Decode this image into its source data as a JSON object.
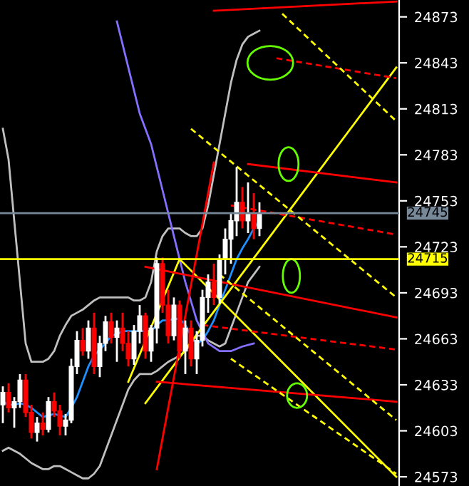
{
  "chart_data": {
    "type": "candlestick",
    "categories": [
      null,
      null,
      null,
      null,
      null,
      null,
      null,
      null,
      null,
      null,
      null,
      null,
      null,
      null,
      null,
      null,
      null,
      null,
      null,
      null,
      null,
      null,
      null,
      null,
      null,
      null,
      null,
      null,
      null,
      null,
      null,
      null,
      null,
      null,
      null,
      null,
      null,
      null,
      null,
      null,
      null,
      null,
      null,
      null,
      null,
      null,
      null,
      null,
      null,
      null,
      null,
      null,
      null,
      null,
      null,
      null,
      null,
      null,
      null,
      null,
      null,
      null,
      null,
      null,
      null,
      null,
      null,
      null,
      null,
      null
    ],
    "ohlc": [
      [
        24620,
        24632,
        24608,
        24628
      ],
      [
        24628,
        24634,
        24615,
        24618
      ],
      [
        24618,
        24625,
        24605,
        24622
      ],
      [
        24622,
        24640,
        24618,
        24636
      ],
      [
        24636,
        24640,
        24612,
        24615
      ],
      [
        24615,
        24620,
        24598,
        24602
      ],
      [
        24602,
        24612,
        24596,
        24608
      ],
      [
        24608,
        24615,
        24600,
        24604
      ],
      [
        24604,
        24625,
        24602,
        24622
      ],
      [
        24622,
        24628,
        24612,
        24616
      ],
      [
        24616,
        24620,
        24600,
        24606
      ],
      [
        24606,
        24614,
        24600,
        24610
      ],
      [
        24610,
        24650,
        24608,
        24645
      ],
      [
        24645,
        24668,
        24640,
        24662
      ],
      [
        24662,
        24670,
        24652,
        24655
      ],
      [
        24655,
        24675,
        24650,
        24670
      ],
      [
        24670,
        24680,
        24640,
        24645
      ],
      [
        24645,
        24665,
        24638,
        24660
      ],
      [
        24660,
        24678,
        24655,
        24674
      ],
      [
        24674,
        24680,
        24660,
        24664
      ],
      [
        24664,
        24675,
        24648,
        24670
      ],
      [
        24670,
        24680,
        24655,
        24660
      ],
      [
        24660,
        24668,
        24645,
        24650
      ],
      [
        24650,
        24672,
        24646,
        24668
      ],
      [
        24668,
        24685,
        24660,
        24678
      ],
      [
        24678,
        24680,
        24650,
        24655
      ],
      [
        24655,
        24672,
        24648,
        24670
      ],
      [
        24670,
        24716,
        24660,
        24712
      ],
      [
        24712,
        24716,
        24680,
        24685
      ],
      [
        24685,
        24695,
        24660,
        24665
      ],
      [
        24665,
        24690,
        24662,
        24685
      ],
      [
        24685,
        24688,
        24650,
        24655
      ],
      [
        24655,
        24675,
        24640,
        24670
      ],
      [
        24670,
        24675,
        24645,
        24650
      ],
      [
        24650,
        24668,
        24640,
        24662
      ],
      [
        24662,
        24695,
        24658,
        24690
      ],
      [
        24690,
        24705,
        24680,
        24700
      ],
      [
        24700,
        24712,
        24685,
        24690
      ],
      [
        24690,
        24718,
        24686,
        24715
      ],
      [
        24715,
        24735,
        24705,
        24728
      ],
      [
        24728,
        24745,
        24712,
        24740
      ],
      [
        24740,
        24775,
        24730,
        24752
      ],
      [
        24752,
        24762,
        24735,
        24740
      ],
      [
        24740,
        24765,
        24732,
        24745
      ],
      [
        24745,
        24758,
        24728,
        24735
      ],
      [
        24735,
        24752,
        24730,
        24745
      ],
      null,
      null,
      null,
      null,
      null,
      null,
      null,
      null,
      null,
      null,
      null,
      null,
      null,
      null,
      null,
      null,
      null,
      null,
      null,
      null,
      null,
      null,
      null,
      null
    ],
    "colors": [
      "#ffffff",
      "#ff0000",
      "#ffffff",
      "#ffffff",
      "#ff0000",
      "#ff0000",
      "#ffffff",
      "#ff0000",
      "#ffffff",
      "#ff0000",
      "#ff0000",
      "#ffffff",
      "#ffffff",
      "#ffffff",
      "#ff0000",
      "#ffffff",
      "#ff0000",
      "#ffffff",
      "#ffffff",
      "#ff0000",
      "#ffffff",
      "#ff0000",
      "#ff0000",
      "#ffffff",
      "#ffffff",
      "#ff0000",
      "#ffffff",
      "#ffffff",
      "#ff0000",
      "#ff0000",
      "#ffffff",
      "#ff0000",
      "#ffffff",
      "#ff0000",
      "#ffffff",
      "#ffffff",
      "#ffffff",
      "#ff0000",
      "#ffffff",
      "#ffffff",
      "#ffffff",
      "#ffffff",
      "#ff0000",
      "#ffffff",
      "#ff0000",
      "#ffffff",
      null,
      null,
      null,
      null,
      null,
      null,
      null,
      null,
      null,
      null,
      null,
      null,
      null,
      null,
      null,
      null,
      null,
      null,
      null,
      null,
      null,
      null,
      null,
      null
    ],
    "series": [
      {
        "type": "line",
        "color": "#c0c0c0",
        "values": [
          24800,
          24780,
          24740,
          24700,
          24660,
          24648,
          24648,
          24648,
          24650,
          24655,
          24665,
          24672,
          24678,
          24680,
          24682,
          24685,
          24688,
          24690,
          24690,
          24690,
          24690,
          24690,
          24690,
          24688,
          24688,
          24690,
          24700,
          24720,
          24730,
          24735,
          24735,
          24735,
          24732,
          24730,
          24730,
          24735,
          24750,
          24770,
          24790,
          24810,
          24830,
          24845,
          24855,
          24860,
          24862,
          24864,
          null,
          null,
          null,
          null,
          null,
          null,
          null,
          null,
          null,
          null,
          null,
          null,
          null,
          null,
          null,
          null,
          null,
          null,
          null,
          null,
          null,
          null,
          null,
          null
        ]
      },
      {
        "type": "line",
        "color": "#c0c0c0",
        "values": [
          24590,
          24592,
          24590,
          24588,
          24585,
          24582,
          24580,
          24578,
          24578,
          24580,
          24580,
          24578,
          24576,
          24574,
          24572,
          24572,
          24575,
          24580,
          24590,
          24600,
          24610,
          24620,
          24630,
          24636,
          24640,
          24640,
          24640,
          24642,
          24645,
          24648,
          24650,
          24652,
          24655,
          24660,
          24665,
          24665,
          24662,
          24660,
          24658,
          24660,
          24670,
          24680,
          24690,
          24700,
          24705,
          24710,
          null,
          null,
          null,
          null,
          null,
          null,
          null,
          null,
          null,
          null,
          null,
          null,
          null,
          null,
          null,
          null,
          null,
          null,
          null,
          null,
          null,
          null,
          null,
          null
        ]
      },
      {
        "type": "line",
        "color": "#1e90ff",
        "values": [
          24622,
          24620,
          24620,
          24621,
          24620,
          24618,
          24615,
          24612,
          24613,
          24614,
          24613,
          24612,
          24618,
          24625,
          24635,
          24645,
          24652,
          24656,
          24660,
          24665,
          24666,
          24668,
          24668,
          24668,
          24668,
          24668,
          24668,
          24672,
          24675,
          24675,
          24676,
          24676,
          24672,
          24665,
          24660,
          24662,
          24668,
          24675,
          24685,
          24695,
          24705,
          24715,
          24722,
          24728,
          24735,
          24740,
          null,
          null,
          null,
          null,
          null,
          null,
          null,
          null,
          null,
          null,
          null,
          null,
          null,
          null,
          null,
          null,
          null,
          null,
          null,
          null,
          null,
          null,
          null,
          null
        ]
      },
      {
        "type": "line",
        "color": "#8470ff",
        "values": [
          null,
          null,
          null,
          null,
          null,
          null,
          null,
          null,
          null,
          null,
          null,
          null,
          null,
          null,
          null,
          null,
          null,
          null,
          null,
          null,
          24870,
          null,
          24840,
          null,
          24810,
          null,
          24790,
          null,
          24760,
          null,
          24730,
          null,
          24700,
          null,
          24675,
          null,
          24660,
          null,
          24655,
          null,
          24655,
          null,
          24658,
          null,
          24660,
          null,
          null,
          null,
          null,
          null,
          null,
          null,
          null,
          null,
          null,
          null,
          null,
          null,
          null,
          null,
          null,
          null,
          null,
          null,
          null,
          null,
          null,
          null,
          null,
          null
        ]
      },
      {
        "type": "line",
        "color": "#ffff00",
        "values": [
          null,
          null,
          null,
          null,
          null,
          null,
          null,
          null,
          null,
          null,
          null,
          null,
          null,
          null,
          null,
          null,
          null,
          null,
          null,
          null,
          null,
          null,
          null,
          null,
          null,
          24621,
          null,
          null,
          null,
          null,
          null,
          null,
          null,
          null,
          null,
          null,
          null,
          null,
          null,
          null,
          null,
          null,
          null,
          null,
          null,
          null,
          null,
          null,
          null,
          null,
          null,
          null,
          null,
          null,
          null,
          null,
          null,
          null,
          null,
          null,
          null,
          null,
          null,
          null,
          null,
          null,
          null,
          null,
          null,
          24840
        ]
      },
      {
        "type": "line",
        "color": "#ffff00",
        "values": [
          null,
          null,
          null,
          null,
          null,
          null,
          null,
          null,
          null,
          null,
          null,
          null,
          null,
          null,
          null,
          null,
          null,
          null,
          null,
          null,
          null,
          null,
          24635,
          null,
          null,
          null,
          null,
          null,
          null,
          null,
          null,
          24715,
          null,
          null,
          null,
          null,
          null,
          null,
          null,
          null,
          null,
          null,
          null,
          null,
          null,
          null,
          null,
          null,
          null,
          null,
          null,
          null,
          null,
          null,
          null,
          null,
          null,
          null,
          null,
          null,
          null,
          null,
          null,
          null,
          null,
          null,
          null,
          null,
          null,
          null
        ]
      },
      {
        "type": "line",
        "color": "#ffff00",
        "values": [
          null,
          null,
          null,
          null,
          null,
          null,
          null,
          null,
          null,
          null,
          null,
          null,
          null,
          null,
          null,
          null,
          null,
          null,
          null,
          null,
          null,
          null,
          null,
          null,
          null,
          null,
          null,
          null,
          null,
          null,
          null,
          24715,
          null,
          null,
          null,
          null,
          null,
          null,
          null,
          null,
          null,
          null,
          null,
          null,
          null,
          null,
          null,
          null,
          null,
          null,
          null,
          null,
          null,
          null,
          null,
          null,
          null,
          null,
          null,
          null,
          null,
          null,
          null,
          null,
          null,
          null,
          null,
          null,
          null,
          24573
        ]
      },
      {
        "type": "line",
        "color": "#ff0000",
        "values": [
          null,
          null,
          null,
          null,
          null,
          null,
          null,
          null,
          null,
          null,
          null,
          null,
          null,
          null,
          null,
          null,
          null,
          null,
          null,
          null,
          null,
          null,
          null,
          null,
          null,
          null,
          null,
          null,
          null,
          null,
          null,
          null,
          null,
          null,
          null,
          null,
          null,
          24877,
          null,
          null,
          null,
          null,
          null,
          null,
          null,
          null,
          null,
          null,
          null,
          null,
          null,
          null,
          null,
          null,
          null,
          null,
          null,
          null,
          null,
          null,
          null,
          null,
          null,
          null,
          null,
          null,
          null,
          null,
          null,
          24883
        ]
      },
      {
        "type": "line",
        "color": "#ff0000",
        "values": [
          null,
          null,
          null,
          null,
          null,
          null,
          null,
          null,
          null,
          null,
          null,
          null,
          null,
          null,
          null,
          null,
          null,
          null,
          null,
          null,
          null,
          null,
          null,
          null,
          null,
          null,
          null,
          null,
          null,
          null,
          null,
          null,
          null,
          null,
          null,
          null,
          null,
          null,
          null,
          null,
          null,
          null,
          null,
          24777,
          null,
          null,
          null,
          null,
          null,
          null,
          null,
          null,
          null,
          null,
          null,
          null,
          null,
          null,
          null,
          null,
          null,
          null,
          null,
          null,
          null,
          null,
          null,
          null,
          null,
          24765
        ]
      },
      {
        "type": "line",
        "color": "#ff0000",
        "values": [
          null,
          null,
          null,
          null,
          null,
          null,
          null,
          null,
          null,
          null,
          null,
          null,
          null,
          null,
          null,
          null,
          null,
          null,
          null,
          null,
          null,
          null,
          null,
          null,
          null,
          24710,
          null,
          null,
          null,
          null,
          null,
          null,
          null,
          null,
          null,
          null,
          null,
          null,
          null,
          null,
          null,
          null,
          null,
          null,
          null,
          null,
          null,
          null,
          null,
          null,
          null,
          null,
          null,
          null,
          null,
          null,
          null,
          null,
          null,
          null,
          null,
          null,
          null,
          null,
          null,
          null,
          null,
          null,
          null,
          24677
        ]
      },
      {
        "type": "line",
        "color": "#ff0000",
        "values": [
          null,
          null,
          null,
          null,
          null,
          null,
          null,
          null,
          null,
          null,
          null,
          null,
          null,
          null,
          null,
          null,
          null,
          null,
          null,
          null,
          null,
          null,
          null,
          null,
          null,
          null,
          null,
          24635,
          null,
          null,
          null,
          null,
          null,
          null,
          null,
          null,
          null,
          null,
          null,
          null,
          null,
          null,
          null,
          null,
          null,
          null,
          null,
          null,
          null,
          null,
          null,
          null,
          null,
          null,
          null,
          null,
          null,
          null,
          null,
          null,
          null,
          null,
          null,
          null,
          null,
          null,
          null,
          null,
          null,
          24622
        ]
      },
      {
        "type": "line",
        "color": "#ff0000",
        "values": [
          null,
          null,
          null,
          null,
          null,
          null,
          null,
          null,
          null,
          null,
          null,
          null,
          null,
          null,
          null,
          null,
          null,
          null,
          null,
          null,
          null,
          null,
          null,
          null,
          null,
          null,
          null,
          24578,
          null,
          null,
          null,
          null,
          null,
          null,
          null,
          null,
          null,
          24778,
          null,
          null,
          null,
          null,
          null,
          null,
          null,
          null,
          null,
          null,
          null,
          null,
          null,
          null,
          null,
          null,
          null,
          null,
          null,
          null,
          null,
          null,
          null,
          null,
          null,
          null,
          null,
          null,
          null,
          null,
          null,
          null
        ]
      },
      {
        "type": "line",
        "color": "#ff0000",
        "line_style": "dashed",
        "values": [
          null,
          null,
          null,
          null,
          null,
          null,
          null,
          null,
          null,
          null,
          null,
          null,
          null,
          null,
          null,
          null,
          null,
          null,
          null,
          null,
          null,
          null,
          null,
          null,
          null,
          null,
          null,
          null,
          null,
          null,
          null,
          null,
          null,
          null,
          null,
          null,
          null,
          null,
          null,
          null,
          null,
          null,
          null,
          null,
          null,
          null,
          null,
          null,
          24846,
          null,
          null,
          null,
          null,
          null,
          null,
          null,
          null,
          null,
          null,
          null,
          null,
          null,
          null,
          null,
          null,
          null,
          null,
          null,
          null,
          24833
        ]
      },
      {
        "type": "line",
        "color": "#ff0000",
        "line_style": "dashed",
        "values": [
          null,
          null,
          null,
          null,
          null,
          null,
          null,
          null,
          null,
          null,
          null,
          null,
          null,
          null,
          null,
          null,
          null,
          null,
          null,
          null,
          null,
          null,
          null,
          null,
          null,
          null,
          null,
          null,
          null,
          null,
          null,
          null,
          null,
          null,
          null,
          null,
          null,
          null,
          null,
          null,
          24750,
          null,
          null,
          null,
          null,
          null,
          null,
          null,
          null,
          null,
          null,
          null,
          null,
          null,
          null,
          null,
          null,
          null,
          null,
          null,
          null,
          null,
          null,
          null,
          null,
          null,
          null,
          null,
          null,
          24731
        ]
      },
      {
        "type": "line",
        "color": "#ff0000",
        "line_style": "dashed",
        "values": [
          null,
          null,
          null,
          null,
          null,
          null,
          null,
          null,
          null,
          null,
          null,
          null,
          null,
          null,
          null,
          null,
          null,
          null,
          null,
          null,
          null,
          null,
          null,
          null,
          null,
          null,
          null,
          null,
          null,
          null,
          null,
          null,
          null,
          null,
          null,
          24672,
          null,
          null,
          null,
          null,
          null,
          null,
          null,
          null,
          null,
          null,
          null,
          null,
          null,
          null,
          null,
          null,
          null,
          null,
          null,
          null,
          null,
          null,
          null,
          null,
          null,
          null,
          null,
          null,
          null,
          null,
          null,
          null,
          null,
          24656
        ]
      },
      {
        "type": "line",
        "color": "#ffff00",
        "line_style": "dashed",
        "values": [
          null,
          null,
          null,
          null,
          null,
          null,
          null,
          null,
          null,
          null,
          null,
          null,
          null,
          null,
          null,
          null,
          null,
          null,
          null,
          null,
          null,
          null,
          null,
          null,
          null,
          null,
          null,
          null,
          null,
          null,
          null,
          null,
          null,
          null,
          null,
          null,
          null,
          null,
          null,
          null,
          null,
          null,
          null,
          null,
          null,
          null,
          null,
          null,
          null,
          24875,
          null,
          null,
          null,
          null,
          null,
          null,
          null,
          null,
          null,
          null,
          null,
          null,
          null,
          null,
          null,
          null,
          null,
          null,
          null,
          24805
        ]
      },
      {
        "type": "line",
        "color": "#ffff00",
        "line_style": "dashed",
        "values": [
          null,
          null,
          null,
          null,
          null,
          null,
          null,
          null,
          null,
          null,
          null,
          null,
          null,
          null,
          null,
          null,
          null,
          null,
          null,
          null,
          null,
          null,
          null,
          null,
          null,
          null,
          null,
          null,
          null,
          null,
          null,
          null,
          null,
          24800,
          null,
          null,
          null,
          null,
          null,
          null,
          null,
          null,
          null,
          null,
          null,
          null,
          null,
          null,
          null,
          null,
          null,
          null,
          null,
          null,
          null,
          null,
          null,
          null,
          null,
          null,
          null,
          null,
          null,
          null,
          null,
          null,
          null,
          null,
          null,
          24690
        ]
      },
      {
        "type": "line",
        "color": "#ffff00",
        "line_style": "dashed",
        "values": [
          null,
          null,
          null,
          null,
          null,
          null,
          null,
          null,
          null,
          null,
          null,
          null,
          null,
          null,
          null,
          null,
          null,
          null,
          null,
          null,
          null,
          null,
          null,
          null,
          null,
          null,
          null,
          null,
          null,
          null,
          null,
          null,
          null,
          null,
          null,
          null,
          null,
          null,
          24705,
          null,
          null,
          null,
          null,
          null,
          null,
          null,
          null,
          null,
          null,
          null,
          null,
          null,
          null,
          null,
          null,
          null,
          null,
          null,
          null,
          null,
          null,
          null,
          null,
          null,
          null,
          null,
          null,
          null,
          null,
          24610
        ]
      },
      {
        "type": "line",
        "color": "#ffff00",
        "line_style": "dashed",
        "values": [
          null,
          null,
          null,
          null,
          null,
          null,
          null,
          null,
          null,
          null,
          null,
          null,
          null,
          null,
          null,
          null,
          null,
          null,
          null,
          null,
          null,
          null,
          null,
          null,
          null,
          null,
          null,
          null,
          null,
          null,
          null,
          null,
          null,
          null,
          null,
          null,
          null,
          null,
          null,
          null,
          24650,
          null,
          null,
          null,
          null,
          null,
          null,
          null,
          null,
          null,
          null,
          null,
          null,
          null,
          null,
          null,
          null,
          null,
          null,
          null,
          null,
          null,
          null,
          null,
          null,
          null,
          null,
          null,
          null,
          24575
        ]
      }
    ],
    "ref_lines": [
      {
        "axis": "y",
        "value": 24745,
        "label": "24745",
        "color": "#778899"
      },
      {
        "axis": "y",
        "value": 24715,
        "label": "24715",
        "color": "#ffff00"
      }
    ],
    "ylim": [
      24567,
      24884
    ],
    "yticks": [
      24573,
      24603,
      24633,
      24663,
      24693,
      24723,
      24753,
      24783,
      24813,
      24843,
      24873
    ],
    "tick_labels": "y",
    "grid": false
  }
}
